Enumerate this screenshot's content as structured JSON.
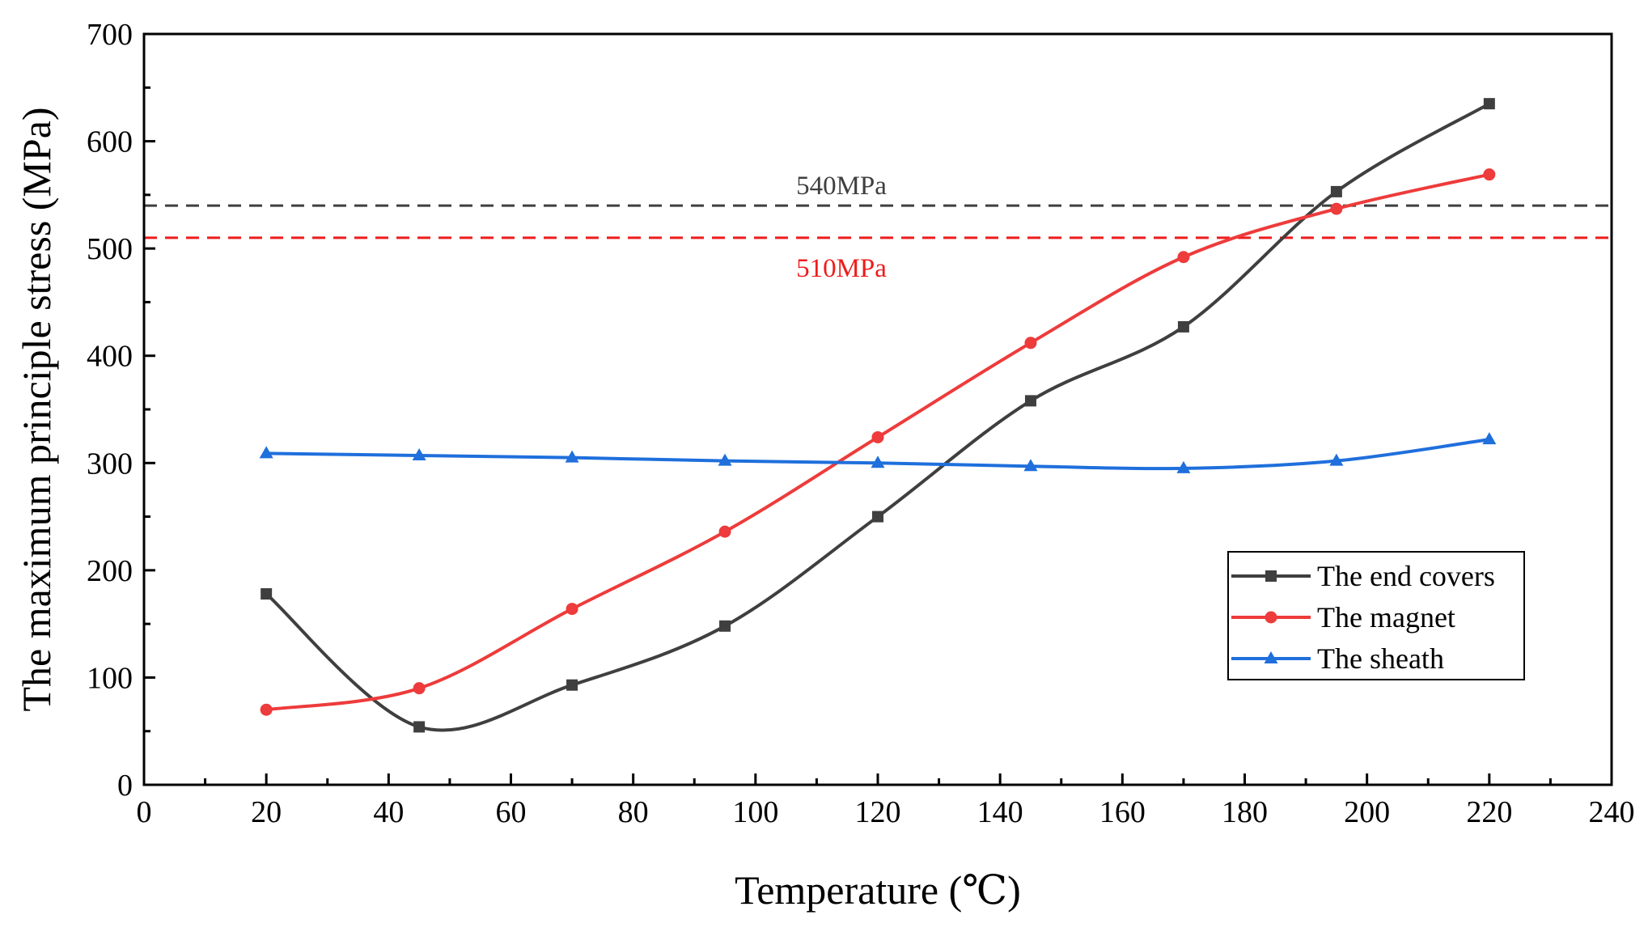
{
  "chart_data": {
    "type": "line",
    "xlabel": "Temperature (℃)",
    "ylabel": "The maximum principle stress (MPa)",
    "xlim": [
      0,
      240
    ],
    "ylim": [
      0,
      700
    ],
    "xticks": [
      "0",
      "20",
      "40",
      "60",
      "80",
      "100",
      "120",
      "140",
      "160",
      "180",
      "200",
      "220",
      "240"
    ],
    "yticks": [
      "0",
      "100",
      "200",
      "300",
      "400",
      "500",
      "600",
      "700"
    ],
    "x": [
      20,
      45,
      70,
      95,
      120,
      145,
      170,
      195,
      220
    ],
    "series": [
      {
        "name": "The end covers",
        "color": "#3f3f3f",
        "marker": "square",
        "values": [
          178,
          54,
          93,
          148,
          250,
          358,
          427,
          553,
          635
        ]
      },
      {
        "name": "The magnet",
        "color": "#ee3b3b",
        "marker": "circle",
        "values": [
          70,
          90,
          164,
          236,
          324,
          412,
          492,
          537,
          569
        ]
      },
      {
        "name": "The sheath",
        "color": "#1f6fdc",
        "marker": "triangle",
        "values": [
          309,
          307,
          305,
          302,
          300,
          297,
          295,
          302,
          322
        ]
      }
    ],
    "reference_lines": [
      {
        "label": "540MPa",
        "value": 540,
        "color": "#3f3f3f",
        "style": "dashed"
      },
      {
        "label": "510MPa",
        "value": 510,
        "color": "#ee1c1c",
        "style": "dashed"
      }
    ],
    "legend": "bottom-right",
    "grid": false
  }
}
